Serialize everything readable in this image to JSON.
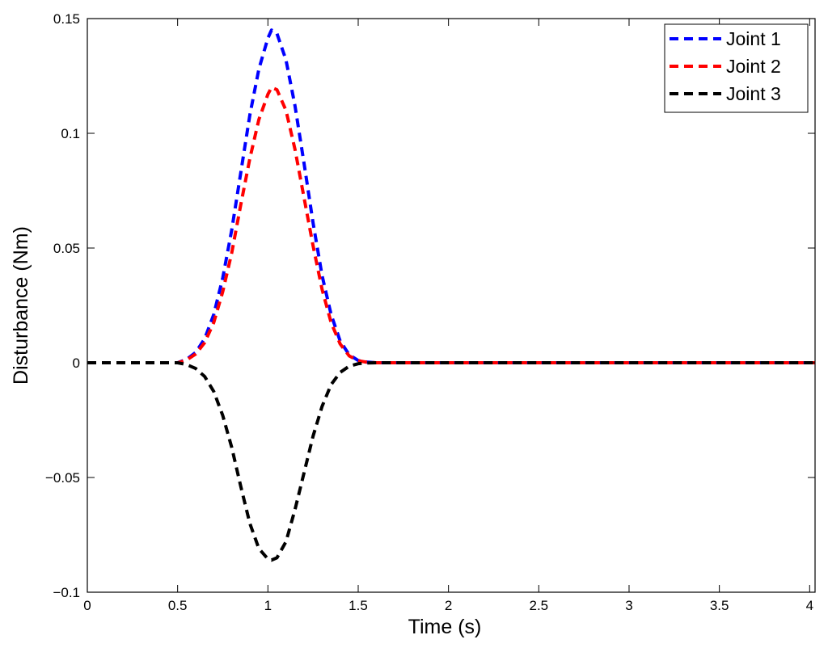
{
  "chart_data": {
    "type": "line",
    "xlabel": "Time (s)",
    "ylabel": "Disturbance (Nm)",
    "xlim": [
      0,
      4.03
    ],
    "ylim": [
      -0.1,
      0.15
    ],
    "xticks": [
      0,
      0.5,
      1,
      1.5,
      2,
      2.5,
      3,
      3.5,
      4
    ],
    "xtick_labels": [
      "0",
      "0.5",
      "1",
      "1.5",
      "2",
      "2.5",
      "3",
      "3.5",
      "4"
    ],
    "yticks": [
      -0.1,
      -0.05,
      0,
      0.05,
      0.1,
      0.15
    ],
    "ytick_labels": [
      "−0.1",
      "−0.05",
      "0",
      "0.05",
      "0.1",
      "0.15"
    ],
    "grid": false,
    "legend_position": "top-right",
    "x": [
      0,
      0.1,
      0.2,
      0.3,
      0.4,
      0.5,
      0.55,
      0.6,
      0.65,
      0.7,
      0.75,
      0.8,
      0.85,
      0.9,
      0.95,
      1.0,
      1.02,
      1.05,
      1.1,
      1.15,
      1.2,
      1.25,
      1.3,
      1.35,
      1.4,
      1.45,
      1.5,
      1.55,
      1.6,
      1.7,
      1.8,
      2.0,
      2.5,
      3.0,
      3.5,
      4.0,
      4.03
    ],
    "series": [
      {
        "name": "Joint 1",
        "color": "#0000ff",
        "values": [
          0,
          0,
          0,
          0,
          0,
          0,
          0.0015,
          0.0045,
          0.0105,
          0.021,
          0.037,
          0.058,
          0.083,
          0.108,
          0.128,
          0.1415,
          0.145,
          0.1435,
          0.132,
          0.112,
          0.087,
          0.061,
          0.038,
          0.021,
          0.0095,
          0.0035,
          0.001,
          0.0003,
          0,
          0,
          0,
          0,
          0,
          0,
          0,
          0,
          0
        ]
      },
      {
        "name": "Joint 2",
        "color": "#ff0000",
        "values": [
          0,
          0,
          0,
          0,
          0,
          0,
          0.0012,
          0.0038,
          0.0088,
          0.0175,
          0.031,
          0.048,
          0.069,
          0.089,
          0.106,
          0.117,
          0.12,
          0.119,
          0.11,
          0.093,
          0.072,
          0.051,
          0.032,
          0.0175,
          0.0082,
          0.003,
          0.0009,
          0.0002,
          0,
          0,
          0,
          0,
          0,
          0,
          0,
          0,
          0
        ]
      },
      {
        "name": "Joint 3",
        "color": "#000000",
        "values": [
          0,
          0,
          0,
          0,
          0,
          0,
          -0.0008,
          -0.0025,
          -0.006,
          -0.0125,
          -0.023,
          -0.037,
          -0.054,
          -0.07,
          -0.081,
          -0.0855,
          -0.086,
          -0.085,
          -0.078,
          -0.064,
          -0.048,
          -0.032,
          -0.019,
          -0.0095,
          -0.0042,
          -0.0015,
          -0.0004,
          -0.0001,
          0,
          0,
          0,
          0,
          0,
          0,
          0,
          0,
          0
        ]
      }
    ]
  }
}
